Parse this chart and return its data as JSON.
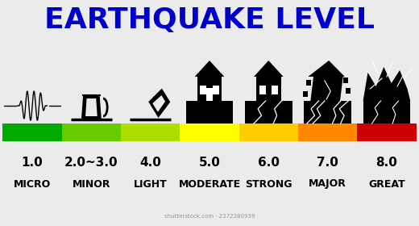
{
  "title": "EARTHQUAKE LEVEL",
  "title_color": "#0000CC",
  "title_fontsize": 26,
  "background_color": "#ebebeb",
  "categories": [
    "1.0",
    "2.0~3.0",
    "4.0",
    "5.0",
    "6.0",
    "7.0",
    "8.0"
  ],
  "labels": [
    "MICRO",
    "MINOR",
    "LIGHT",
    "MODERATE",
    "STRONG",
    "MAJOR",
    "GREAT"
  ],
  "bar_colors": [
    "#00aa00",
    "#66cc00",
    "#aadd00",
    "#ffff00",
    "#ffcc00",
    "#ff8800",
    "#cc0000"
  ],
  "num_fontsize": 11,
  "label_fontsize": 9,
  "watermark": "shutterstock.com · 2372380939"
}
